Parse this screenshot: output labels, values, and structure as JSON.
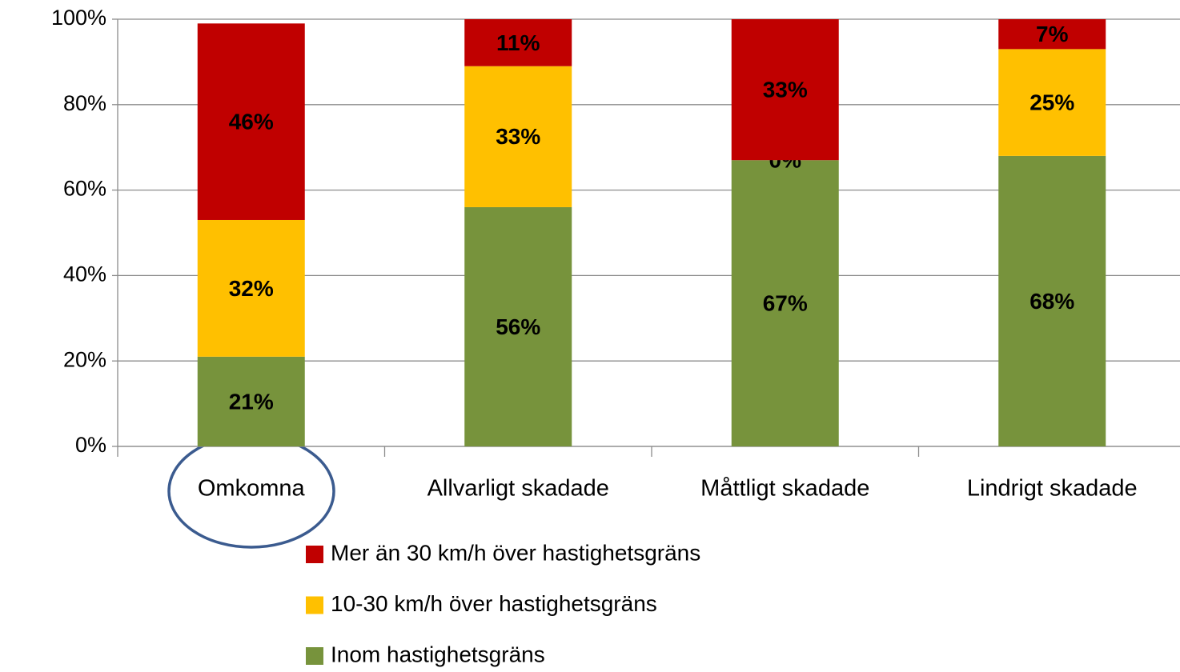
{
  "chart_data": {
    "type": "stacked_bar",
    "categories": [
      "Omkomna",
      "Allvarligt skadade",
      "Måttligt skadade",
      "Lindrigt skadade"
    ],
    "series": [
      {
        "name": "Inom hastighetsgräns",
        "color": "#77933c",
        "values": [
          21,
          56,
          67,
          68
        ],
        "value_labels": [
          "21%",
          "56%",
          "67%",
          "68%"
        ]
      },
      {
        "name": "10-30 km/h över hastighetsgräns",
        "color": "#ffc000",
        "values": [
          32,
          33,
          0,
          25
        ],
        "value_labels": [
          "32%",
          "33%",
          "0%",
          "25%"
        ]
      },
      {
        "name": "Mer än 30 km/h över hastighetsgräns",
        "color": "#c00000",
        "values": [
          46,
          11,
          33,
          7
        ],
        "value_labels": [
          "46%",
          "11%",
          "33%",
          "7%"
        ]
      }
    ],
    "ylim": [
      0,
      100
    ],
    "yticks": [
      {
        "value": 0,
        "label": "0%"
      },
      {
        "value": 20,
        "label": "20%"
      },
      {
        "value": 40,
        "label": "40%"
      },
      {
        "value": 60,
        "label": "60%"
      },
      {
        "value": 80,
        "label": "80%"
      },
      {
        "value": 100,
        "label": "100%"
      }
    ],
    "grid": true,
    "legend": "bottom"
  }
}
